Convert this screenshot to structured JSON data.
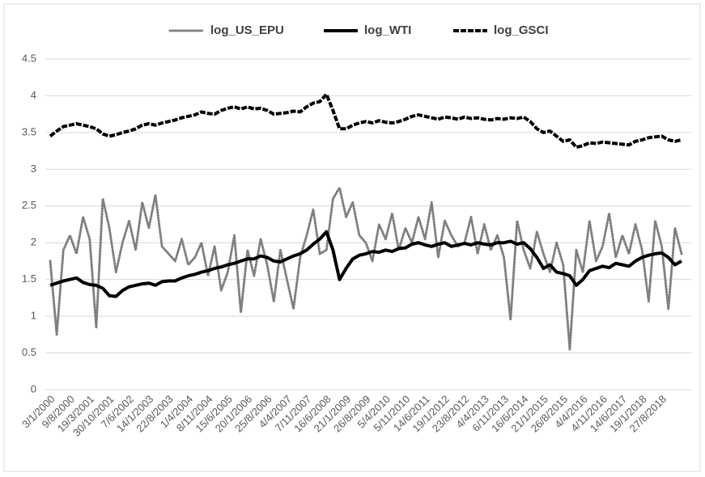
{
  "chart_data": {
    "type": "line",
    "categories": [
      "3/1/2000",
      null,
      null,
      "9/8/2000",
      null,
      null,
      "19/3/2001",
      null,
      null,
      "30/10/2001",
      null,
      null,
      "7/6/2002",
      null,
      null,
      "14/1/2003",
      null,
      null,
      "22/8/2003",
      null,
      null,
      "1/4/2004",
      null,
      null,
      "8/11/2004",
      null,
      null,
      "15/6/2005",
      null,
      null,
      "20/1/2006",
      null,
      null,
      "25/8/2006",
      null,
      null,
      "4/4/2007",
      null,
      null,
      "7/11/2007",
      null,
      null,
      "16/6/2008",
      null,
      null,
      "21/1/2009",
      null,
      null,
      "26/8/2009",
      null,
      null,
      "5/4/2010",
      null,
      null,
      "5/11/2010",
      null,
      null,
      "14/6/2011",
      null,
      null,
      "19/1/2012",
      null,
      null,
      "23/8/2012",
      null,
      null,
      "4/4/2013",
      null,
      null,
      "6/11/2013",
      null,
      null,
      "16/6/2014",
      null,
      null,
      "21/1/2015",
      null,
      null,
      "26/8/2015",
      null,
      null,
      "4/4/2016",
      null,
      null,
      "4/11/2016",
      null,
      null,
      "14/6/2017",
      null,
      null,
      "19/1/2018",
      null,
      null,
      "27/8/2018",
      null,
      null,
      null
    ],
    "series": [
      {
        "name": "log_US_EPU",
        "color": "#7f7f7f",
        "line_style": "dotted",
        "values": [
          1.75,
          0.75,
          1.9,
          2.1,
          1.85,
          2.35,
          2.05,
          0.85,
          2.6,
          2.2,
          1.6,
          2.0,
          2.3,
          1.9,
          2.55,
          2.2,
          2.65,
          1.95,
          1.85,
          1.75,
          2.05,
          1.7,
          1.8,
          2.0,
          1.55,
          1.95,
          1.35,
          1.6,
          2.1,
          1.05,
          1.9,
          1.55,
          2.05,
          1.7,
          1.2,
          1.9,
          1.5,
          1.1,
          1.8,
          2.1,
          2.45,
          1.85,
          1.9,
          2.6,
          2.75,
          2.35,
          2.55,
          2.1,
          2.0,
          1.75,
          2.25,
          2.05,
          2.4,
          1.9,
          2.2,
          2.0,
          2.35,
          2.05,
          2.55,
          1.8,
          2.3,
          2.1,
          1.95,
          2.0,
          2.35,
          1.85,
          2.25,
          1.9,
          2.1,
          1.8,
          0.95,
          2.3,
          1.9,
          1.65,
          2.15,
          1.85,
          1.6,
          2.0,
          1.7,
          0.55,
          1.9,
          1.6,
          2.3,
          1.75,
          1.95,
          2.4,
          1.8,
          2.1,
          1.85,
          2.25,
          1.9,
          1.2,
          2.3,
          1.95,
          1.1,
          2.2,
          1.85
        ]
      },
      {
        "name": "log_WTI",
        "color": "#000000",
        "line_style": "solid",
        "values": [
          1.42,
          1.45,
          1.48,
          1.5,
          1.52,
          1.46,
          1.43,
          1.42,
          1.38,
          1.28,
          1.27,
          1.35,
          1.4,
          1.42,
          1.44,
          1.45,
          1.42,
          1.47,
          1.48,
          1.48,
          1.52,
          1.55,
          1.57,
          1.6,
          1.62,
          1.65,
          1.67,
          1.7,
          1.72,
          1.75,
          1.78,
          1.78,
          1.82,
          1.8,
          1.75,
          1.74,
          1.78,
          1.82,
          1.85,
          1.9,
          1.98,
          2.05,
          2.15,
          1.9,
          1.5,
          1.65,
          1.78,
          1.83,
          1.85,
          1.88,
          1.87,
          1.9,
          1.88,
          1.92,
          1.93,
          1.98,
          2.0,
          1.97,
          1.95,
          1.98,
          2.0,
          1.95,
          1.97,
          1.99,
          1.97,
          2.0,
          1.98,
          1.97,
          2.0,
          2.0,
          2.02,
          1.98,
          2.0,
          1.92,
          1.8,
          1.65,
          1.7,
          1.6,
          1.58,
          1.55,
          1.42,
          1.5,
          1.62,
          1.65,
          1.68,
          1.66,
          1.72,
          1.7,
          1.68,
          1.75,
          1.8,
          1.83,
          1.85,
          1.86,
          1.8,
          1.7,
          1.75
        ]
      },
      {
        "name": "log_GSCI",
        "color": "#000000",
        "line_style": "dashed",
        "values": [
          3.45,
          3.52,
          3.58,
          3.6,
          3.62,
          3.6,
          3.58,
          3.55,
          3.48,
          3.45,
          3.47,
          3.5,
          3.52,
          3.55,
          3.6,
          3.62,
          3.6,
          3.63,
          3.65,
          3.67,
          3.7,
          3.72,
          3.74,
          3.78,
          3.76,
          3.75,
          3.8,
          3.83,
          3.85,
          3.82,
          3.85,
          3.82,
          3.83,
          3.8,
          3.75,
          3.76,
          3.77,
          3.79,
          3.78,
          3.85,
          3.9,
          3.92,
          4.02,
          3.8,
          3.55,
          3.55,
          3.6,
          3.63,
          3.65,
          3.63,
          3.66,
          3.64,
          3.63,
          3.65,
          3.68,
          3.72,
          3.74,
          3.72,
          3.7,
          3.68,
          3.71,
          3.7,
          3.68,
          3.71,
          3.69,
          3.7,
          3.68,
          3.67,
          3.69,
          3.68,
          3.7,
          3.69,
          3.71,
          3.65,
          3.55,
          3.5,
          3.52,
          3.45,
          3.38,
          3.4,
          3.3,
          3.32,
          3.36,
          3.35,
          3.37,
          3.36,
          3.35,
          3.34,
          3.33,
          3.38,
          3.4,
          3.43,
          3.44,
          3.45,
          3.4,
          3.38,
          3.4
        ]
      }
    ],
    "ylim": [
      0,
      4.5
    ],
    "yticks": [
      0,
      0.5,
      1,
      1.5,
      2,
      2.5,
      3,
      3.5,
      4,
      4.5
    ],
    "grid": true,
    "legend": "top"
  }
}
